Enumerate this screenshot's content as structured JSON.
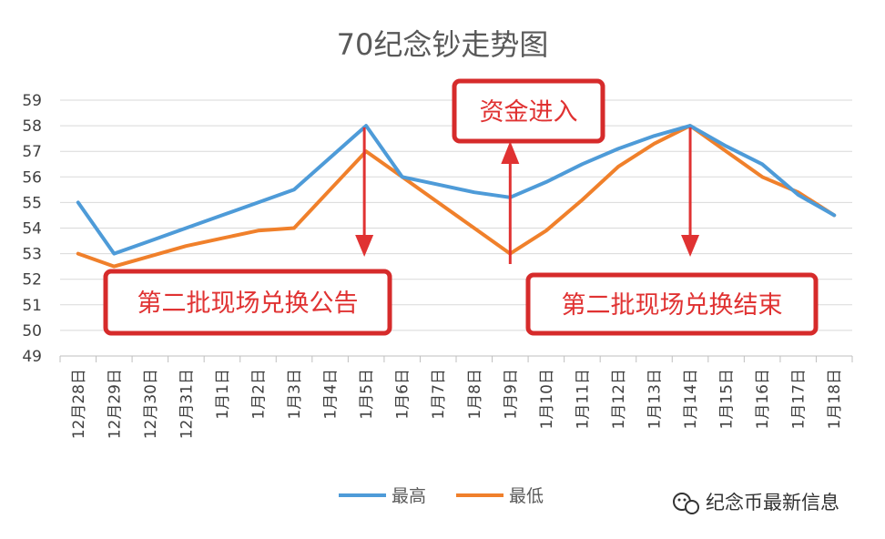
{
  "chart_data": {
    "type": "line",
    "title": "70纪念钞走势图",
    "xlabel": "",
    "ylabel": "",
    "categories": [
      "12月28日",
      "12月29日",
      "12月30日",
      "12月31日",
      "1月1日",
      "1月2日",
      "1月3日",
      "1月4日",
      "1月5日",
      "1月6日",
      "1月7日",
      "1月8日",
      "1月9日",
      "1月10日",
      "1月11日",
      "1月12日",
      "1月13日",
      "1月14日",
      "1月15日",
      "1月16日",
      "1月17日",
      "1月18日"
    ],
    "ylim": [
      49,
      59
    ],
    "yticks": [
      49,
      50,
      51,
      52,
      53,
      54,
      55,
      56,
      57,
      58,
      59
    ],
    "grid": true,
    "legend_position": "bottom",
    "series": [
      {
        "name": "最高",
        "color": "#4e9bd8",
        "values": [
          55,
          53,
          53.5,
          54,
          54.5,
          55,
          55.5,
          null,
          58,
          56,
          55.7,
          55.4,
          55.2,
          55.8,
          56.5,
          57.1,
          57.6,
          58,
          57.2,
          56.5,
          55.3,
          54.5
        ]
      },
      {
        "name": "最低",
        "color": "#f0802b",
        "values": [
          53,
          52.5,
          52.9,
          53.3,
          53.6,
          53.9,
          54,
          null,
          57,
          56,
          55,
          54,
          53,
          53.9,
          55.1,
          56.4,
          57.3,
          58,
          57,
          56,
          55.4,
          54.5
        ]
      }
    ],
    "annotations": [
      {
        "text": "第二批现场兑换公告",
        "category": "1月5日",
        "arrow": "down"
      },
      {
        "text": "资金进入",
        "category": "1月9日",
        "arrow": "up"
      },
      {
        "text": "第二批现场兑换结束",
        "category": "1月14日",
        "arrow": "down"
      }
    ]
  },
  "watermark": {
    "icon": "wechat-icon",
    "text": "纪念币最新信息"
  },
  "colors": {
    "accent_red": "#e03232",
    "grid": "#d9d9d9"
  }
}
